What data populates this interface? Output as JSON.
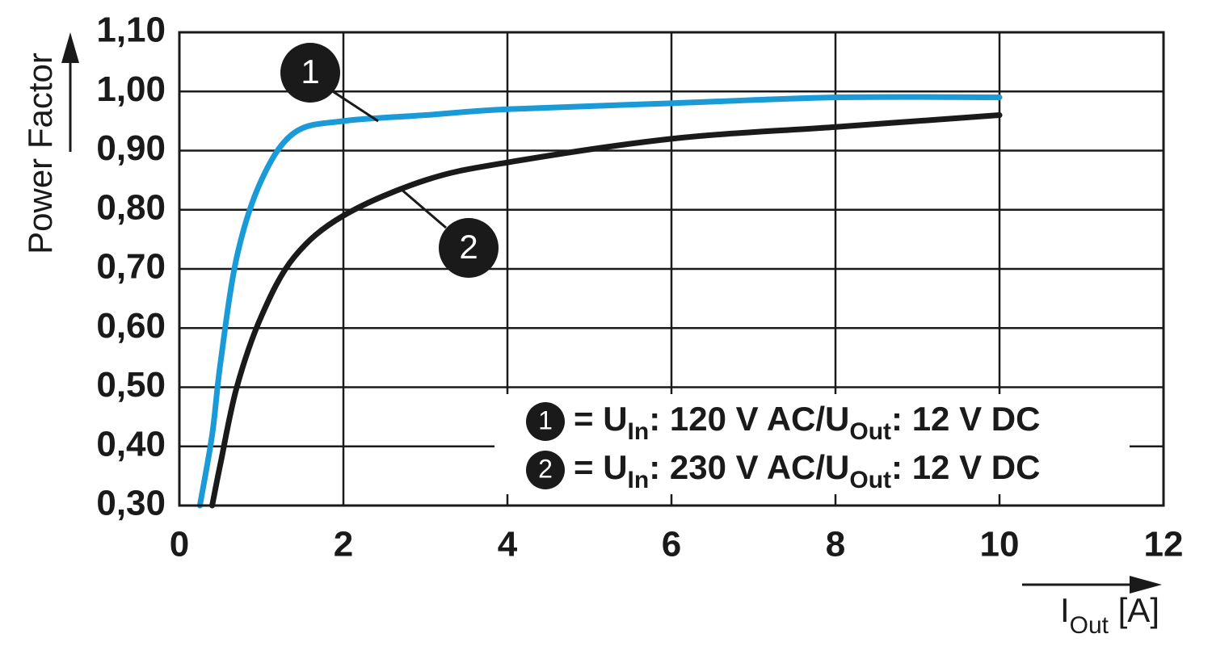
{
  "chart_data": {
    "type": "line",
    "y_label": "Power Factor",
    "x_label": [
      "I",
      "Out",
      " [A]"
    ],
    "x": [
      0.25,
      0.4,
      0.5,
      0.7,
      1,
      1.4,
      2,
      3,
      4,
      6,
      8,
      10
    ],
    "series": [
      {
        "name": "1",
        "color": "#1a9ad6",
        "values": [
          0.3,
          0.42,
          0.54,
          0.72,
          0.85,
          0.93,
          0.95,
          0.96,
          0.97,
          0.98,
          0.99,
          0.99
        ]
      },
      {
        "name": "2",
        "color": "#1a1a1a",
        "values": [
          null,
          0.3,
          0.37,
          0.5,
          0.62,
          0.72,
          0.79,
          0.85,
          0.88,
          0.92,
          0.94,
          0.96
        ]
      }
    ],
    "legend": [
      [
        "= U",
        "In",
        ": 120 V AC/U",
        "Out",
        ": 12 V DC"
      ],
      [
        "= U",
        "In",
        ": 230 V AC/U",
        "Out",
        ": 12 V DC"
      ]
    ],
    "xlim": [
      0,
      12
    ],
    "xticks": [
      0,
      2,
      4,
      6,
      8,
      10,
      12
    ],
    "ylim": [
      0.3,
      1.1
    ],
    "yticks": [
      {
        "value": 0.3,
        "label": "0,30"
      },
      {
        "value": 0.4,
        "label": "0,40"
      },
      {
        "value": 0.5,
        "label": "0,50"
      },
      {
        "value": 0.6,
        "label": "0,60"
      },
      {
        "value": 0.7,
        "label": "0,70"
      },
      {
        "value": 0.8,
        "label": "0,80"
      },
      {
        "value": 0.9,
        "label": "0,90"
      },
      {
        "value": 1.0,
        "label": "1,00"
      },
      {
        "value": 1.1,
        "label": "1,10"
      }
    ],
    "grid": true
  }
}
